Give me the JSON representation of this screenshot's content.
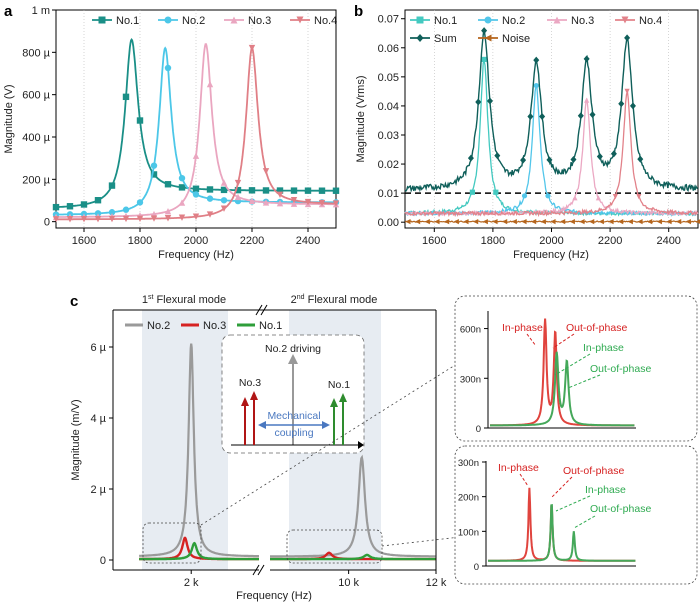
{
  "panel_labels": {
    "a": "a",
    "b": "b",
    "c": "c"
  },
  "chart_data": [
    {
      "id": "a",
      "type": "line",
      "xlabel": "Frequency (Hz)",
      "ylabel": "Magnitude (V)",
      "xlim": [
        1500,
        2500
      ],
      "ylim": [
        -3e-05,
        0.001
      ],
      "xticks": [
        "1600",
        "1800",
        "2000",
        "2200",
        "2400"
      ],
      "yticks": [
        {
          "v": 0,
          "label": "0"
        },
        {
          "v": 0.0002,
          "label": "200 µ"
        },
        {
          "v": 0.0004,
          "label": "400 µ"
        },
        {
          "v": 0.0006,
          "label": "600 µ"
        },
        {
          "v": 0.0008,
          "label": "800 µ"
        },
        {
          "v": 0.001,
          "label": "1 m"
        }
      ],
      "legend_placement": "top",
      "series": [
        {
          "name": "No.1",
          "color": "#1a8f87",
          "marker": "square",
          "f0": 1770,
          "peak": 0.00086,
          "gamma": 28,
          "base": 6e-05,
          "tail_high": 0.000145
        },
        {
          "name": "No.2",
          "color": "#4cc7e8",
          "marker": "circle",
          "f0": 1890,
          "peak": 0.00082,
          "gamma": 26,
          "base": 3e-05,
          "tail_high": 9e-05
        },
        {
          "name": "No.3",
          "color": "#eaa6c0",
          "marker": "triangle-up",
          "f0": 2035,
          "peak": 0.00084,
          "gamma": 26,
          "base": 2e-05,
          "tail_high": 8e-05
        },
        {
          "name": "No.4",
          "color": "#e07f86",
          "marker": "triangle-down",
          "f0": 2200,
          "peak": 0.00082,
          "gamma": 26,
          "base": 1e-05,
          "tail_high": 8e-05
        }
      ]
    },
    {
      "id": "b",
      "type": "line",
      "xlabel": "Frequency (Hz)",
      "ylabel": "Magnitude (Vrms)",
      "xlim": [
        1500,
        2500
      ],
      "ylim": [
        -0.002,
        0.073
      ],
      "xticks": [
        "1600",
        "1800",
        "2000",
        "2200",
        "2400"
      ],
      "yticks": [
        "0.00",
        "0.01",
        "0.02",
        "0.03",
        "0.04",
        "0.05",
        "0.06",
        "0.07"
      ],
      "threshold": 0.01,
      "legend_placement": "top",
      "series": [
        {
          "name": "No.1",
          "color": "#43c9c0",
          "marker": "square",
          "f0": 1770,
          "peak": 0.056
        },
        {
          "name": "No.2",
          "color": "#52c6ea",
          "marker": "circle",
          "f0": 1948,
          "peak": 0.047
        },
        {
          "name": "No.3",
          "color": "#eba8c3",
          "marker": "triangle-up",
          "f0": 2120,
          "peak": 0.042
        },
        {
          "name": "No.4",
          "color": "#e2828a",
          "marker": "triangle-down",
          "f0": 2258,
          "peak": 0.045
        },
        {
          "name": "Sum",
          "color": "#0f5f5a",
          "marker": "diamond",
          "peaks": [
            [
              1770,
              0.065
            ],
            [
              1948,
              0.054
            ],
            [
              2120,
              0.054
            ],
            [
              2258,
              0.062
            ]
          ]
        },
        {
          "name": "Noise",
          "color": "#b5651d",
          "marker": "triangle-left",
          "level": 0.0002
        }
      ]
    },
    {
      "id": "c",
      "type": "line",
      "xlabel": "Frequency (Hz)",
      "ylabel": "Magnitude (m/V)",
      "xticks": [
        "2 k",
        "10 k",
        "12 k"
      ],
      "yticks": [
        "0",
        "2 µ",
        "4 µ",
        "6 µ"
      ],
      "mode_labels": [
        {
          "base": "1",
          "sup": "st",
          "rest": " Flexural mode"
        },
        {
          "base": "2",
          "sup": "nd",
          "rest": " Flexural mode"
        }
      ],
      "legend_placement": "top-left",
      "series": [
        {
          "name": "No.2",
          "color": "#9a9a9a",
          "peaks": [
            [
              2000,
              6e-06
            ],
            [
              10300,
              2.8e-06
            ]
          ]
        },
        {
          "name": "No.3",
          "color": "#d62222",
          "peaks": [
            [
              1880,
              6e-07
            ],
            [
              9550,
              1.8e-07
            ]
          ]
        },
        {
          "name": "No.1",
          "color": "#2e9e3a",
          "peaks": [
            [
              2060,
              4.5e-07
            ],
            [
              10420,
              1.2e-07
            ]
          ]
        }
      ],
      "inset": {
        "title": "No.2 driving",
        "left_label": "No.3",
        "right_label": "No.1",
        "coupling_line1": "Mechanical",
        "coupling_line2": "coupling"
      }
    },
    {
      "id": "c-zoom-top",
      "type": "line",
      "yticks": [
        "0",
        "300n",
        "600n"
      ],
      "annotations": [
        {
          "text": "In-phase",
          "color": "#d62222"
        },
        {
          "text": "Out-of-phase",
          "color": "#d62222"
        },
        {
          "text": "In-phase",
          "color": "#2eaa50"
        },
        {
          "text": "Out-of-phase",
          "color": "#2eaa50"
        }
      ]
    },
    {
      "id": "c-zoom-bottom",
      "type": "line",
      "yticks": [
        "0",
        "100n",
        "200n",
        "300n"
      ],
      "annotations": [
        {
          "text": "In-phase",
          "color": "#d62222"
        },
        {
          "text": "Out-of-phase",
          "color": "#d62222"
        },
        {
          "text": "In-phase",
          "color": "#2eaa50"
        },
        {
          "text": "Out-of-phase",
          "color": "#2eaa50"
        }
      ]
    }
  ]
}
